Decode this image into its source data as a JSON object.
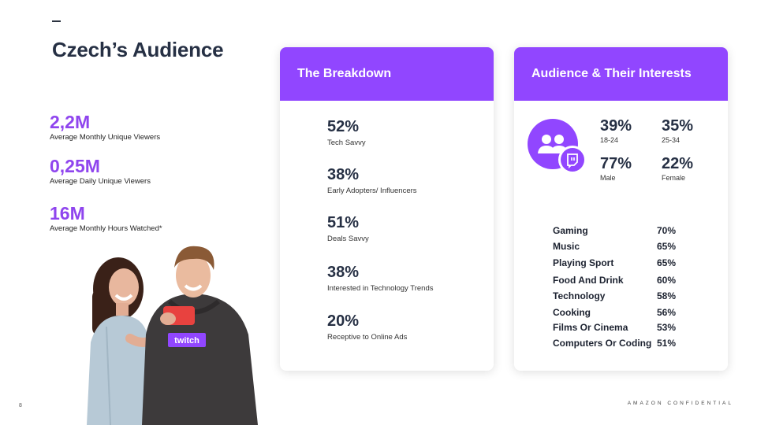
{
  "page": {
    "title": "Czech’s Audience",
    "page_number": "8",
    "footer": "AMAZON CONFIDENTIAL"
  },
  "stats": [
    {
      "value": "2,2M",
      "label": "Average Monthly Unique Viewers"
    },
    {
      "value": "0,25M",
      "label": "Average Daily Unique Viewers"
    },
    {
      "value": "16M",
      "label": "Average Monthly Hours Watched*"
    }
  ],
  "breakdown": {
    "title": "The Breakdown",
    "items": [
      {
        "pct": "52%",
        "label": "Tech Savvy"
      },
      {
        "pct": "38%",
        "label": "Early Adopters/ Influencers"
      },
      {
        "pct": "51%",
        "label": "Deals Savvy"
      },
      {
        "pct": "38%",
        "label": "Interested in Technology Trends"
      },
      {
        "pct": "20%",
        "label": "Receptive to Online Ads"
      }
    ]
  },
  "audience": {
    "title": "Audience & Their Interests",
    "icon": "audience-twitch-icon",
    "demographics": [
      {
        "pct": "39%",
        "label": "18-24"
      },
      {
        "pct": "35%",
        "label": "25-34"
      },
      {
        "pct": "77%",
        "label": "Male"
      },
      {
        "pct": "22%",
        "label": "Female"
      }
    ],
    "interests": [
      {
        "name": "Gaming",
        "value": "70%"
      },
      {
        "name": "Music",
        "value": "65%"
      },
      {
        "name": "Playing Sport",
        "value": "65%"
      },
      {
        "name": "Food And Drink",
        "value": "60%"
      },
      {
        "name": "Technology",
        "value": "58%"
      },
      {
        "name": "Cooking",
        "value": "56%"
      },
      {
        "name": "Films Or Cinema",
        "value": "53%"
      },
      {
        "name": "Computers Or Coding",
        "value": "51%"
      }
    ]
  },
  "photo": {
    "hoodie_text": "twitch"
  },
  "colors": {
    "accent": "#9146ff",
    "title": "#263044"
  }
}
